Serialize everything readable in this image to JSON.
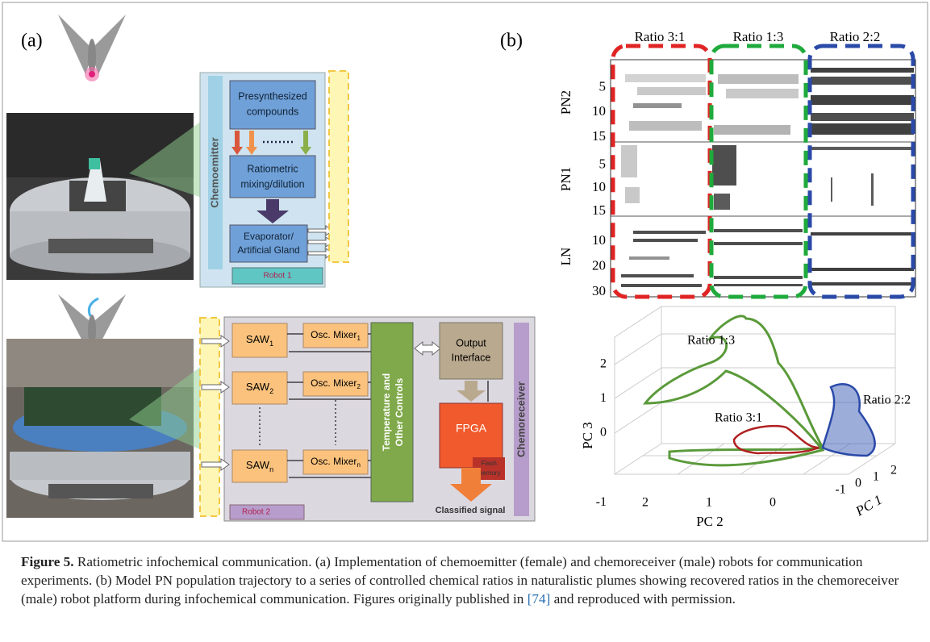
{
  "panel_a": {
    "label": "(a)",
    "emitter": {
      "side_label": "Chemoemitter",
      "compounds": [
        "Presynthesized",
        "compounds"
      ],
      "mixing": [
        "Ratiometric",
        "mixing/dilution"
      ],
      "evaporator": [
        "Evaporator/",
        "Artificial Gland"
      ],
      "robot": "Robot 1"
    },
    "receiver": {
      "side_label": "Chemoreceiver",
      "saw": [
        {
          "text": "SAW",
          "sub": "1"
        },
        {
          "text": "SAW",
          "sub": "2"
        },
        {
          "text": "SAW",
          "sub": "n"
        }
      ],
      "mixers": [
        {
          "text": "Osc. Mixer",
          "sub": "1"
        },
        {
          "text": "Osc. Mixer",
          "sub": "2"
        },
        {
          "text": "Osc. Mixer",
          "sub": "n"
        }
      ],
      "controls": [
        "Temperature and",
        "Other Controls"
      ],
      "output": [
        "Output",
        "Interface"
      ],
      "fpga": "FPGA",
      "flash": [
        "Flash",
        "memory"
      ],
      "classified": "Classified signal",
      "robot": "Robot 2"
    }
  },
  "panel_b": {
    "label": "(b)",
    "heatmap": {
      "columns": [
        "Ratio 3:1",
        "Ratio 1:3",
        "Ratio 2:2"
      ],
      "groups": [
        {
          "name": "PN2",
          "ticks": [
            5,
            10,
            15
          ]
        },
        {
          "name": "PN1",
          "ticks": [
            5,
            10,
            15
          ]
        },
        {
          "name": "LN",
          "ticks": [
            10,
            20,
            30
          ]
        }
      ]
    },
    "trajectory": {
      "annotations": [
        "Ratio 1:3",
        "Ratio 3:1",
        "Ratio 2:2"
      ],
      "zlabel": "PC 3",
      "zticks": [
        2,
        1,
        0,
        -1
      ],
      "xlabel": "PC 2",
      "xticks": [
        2,
        1,
        0
      ],
      "ylabel": "PC 1",
      "yticks": [
        -1,
        0,
        1,
        2
      ]
    }
  },
  "caption": {
    "label": "Figure 5.",
    "text": " Ratiometric infochemical communication. (a) Implementation of chemoemitter (female) and chemoreceiver (male) robots for communication experiments. (b) Model PN population trajectory to a series of controlled chemical ratios in naturalistic plumes showing recovered ratios in the chemoreceiver (male) robot platform during infochemical communication. Figures originally published in ",
    "ref": "[74]",
    "text_end": " and reproduced with permission."
  }
}
